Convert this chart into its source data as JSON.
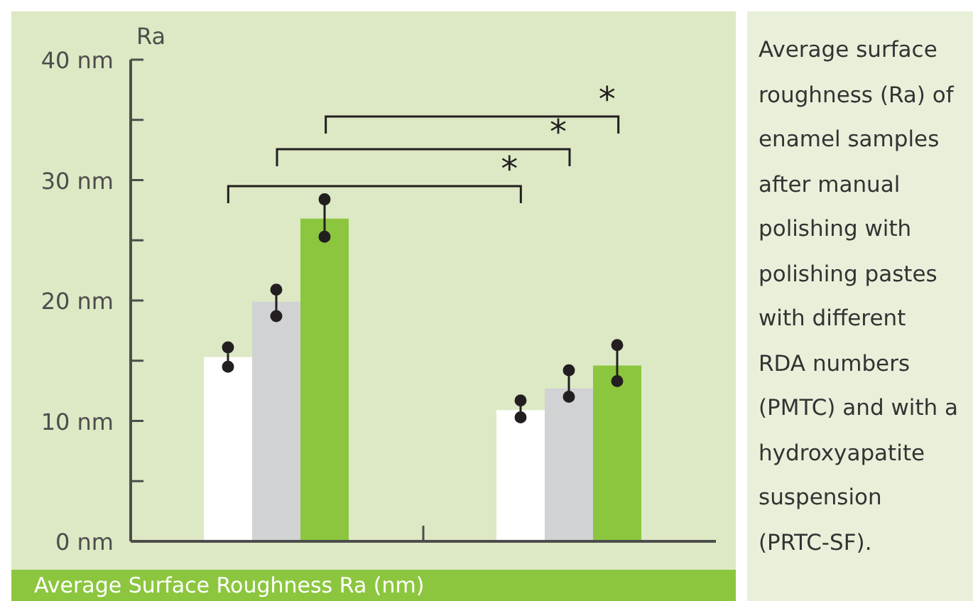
{
  "chart_data": {
    "type": "bar",
    "ylabel": "Ra",
    "xlabel": "Average Surface Roughness Ra (nm)",
    "categories": [
      null,
      null
    ],
    "series": [
      {
        "color": "#ffffff",
        "values": [
          15.3,
          10.9
        ],
        "errors": [
          [
            14.5,
            16.1
          ],
          [
            10.3,
            11.7
          ]
        ]
      },
      {
        "color": "#d1d2d4",
        "values": [
          19.9,
          12.7
        ],
        "errors": [
          [
            18.7,
            20.9
          ],
          [
            12.0,
            14.2
          ]
        ]
      },
      {
        "color": "#8cc63f",
        "values": [
          26.8,
          14.6
        ],
        "errors": [
          [
            25.3,
            28.4
          ],
          [
            13.3,
            16.3
          ]
        ]
      }
    ],
    "ylim": [
      0,
      40
    ],
    "yticks": [
      {
        "value": 0,
        "label": "0 nm"
      },
      {
        "value": 5,
        "label": null
      },
      {
        "value": 10,
        "label": "10 nm"
      },
      {
        "value": 15,
        "label": null
      },
      {
        "value": 20,
        "label": "20 nm"
      },
      {
        "value": 25,
        "label": null
      },
      {
        "value": 30,
        "label": "30 nm"
      },
      {
        "value": 35,
        "label": null
      },
      {
        "value": 40,
        "label": "40 nm"
      }
    ],
    "grid": false,
    "legend": false,
    "annotations": [
      "*",
      "*",
      "*",
      "Average surface roughness (Ra) of enamel samples after manual polishing with polishing pastes with different RDA numbers (PMTC) and with a hydroxyapatite suspension (PRTC-SF)."
    ]
  }
}
